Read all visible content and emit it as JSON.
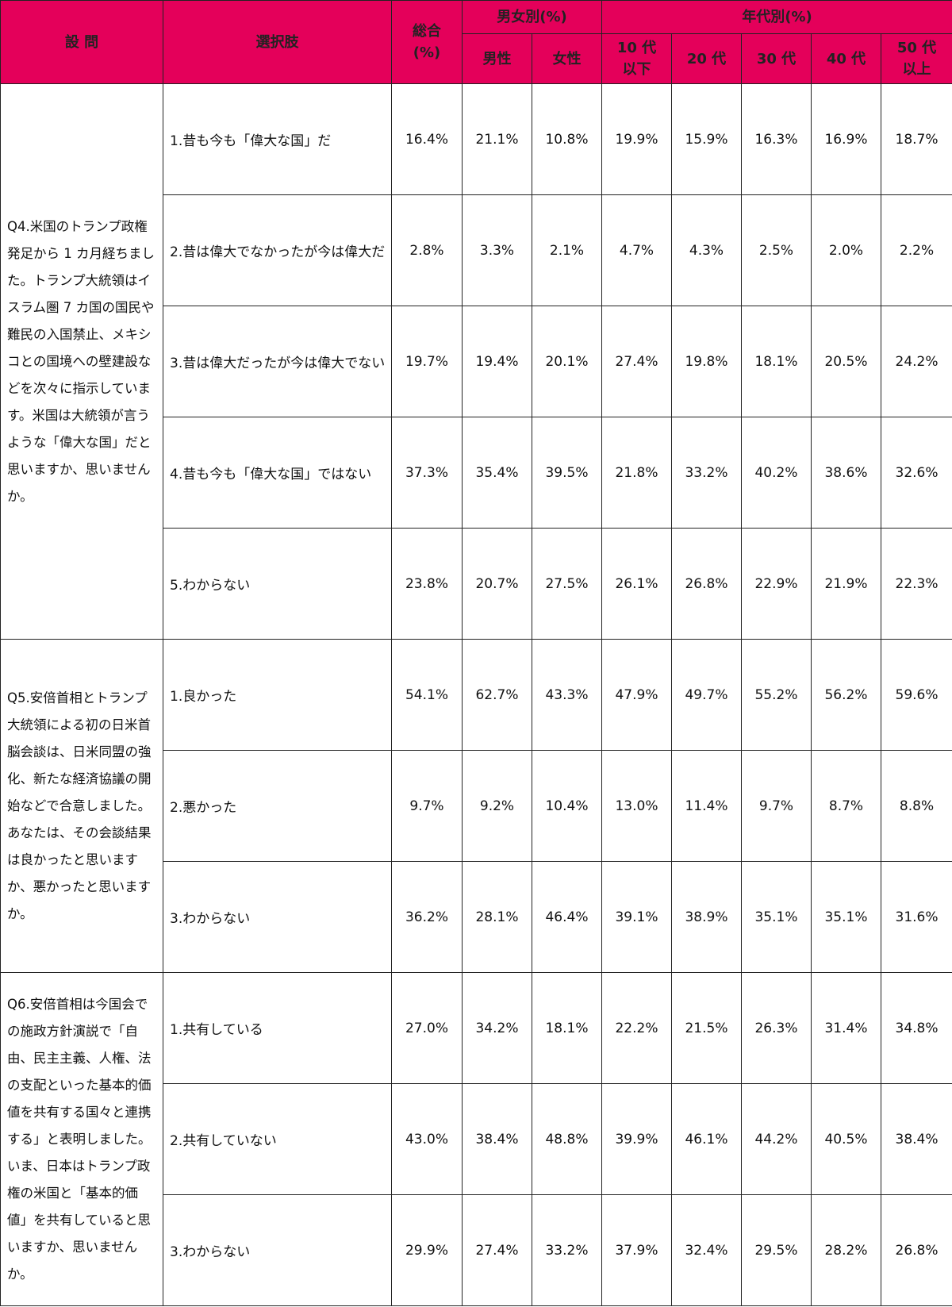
{
  "header": {
    "question": "設 問",
    "choice": "選択肢",
    "total": "総合\n(%)",
    "gender": "男女別(%)",
    "age": "年代別(%)",
    "gender_cols": [
      "男性",
      "女性"
    ],
    "age_cols": [
      "10 代\n以下",
      "20 代",
      "30 代",
      "40 代",
      "50 代\n以上"
    ]
  },
  "colors": {
    "header_bg": "#e4005a"
  },
  "questions": [
    {
      "text": "Q4.米国のトランプ政権発足から 1 カ月経ちました。トランプ大統領はイスラム圏 7 カ国の国民や難民の入国禁止、メキシコとの国境への壁建設などを次々に指示しています。米国は大統領が言うような「偉大な国」だと思いますか、思いませんか。",
      "rows": [
        {
          "choice": "1.昔も今も「偉大な国」だ",
          "values": [
            "16.4%",
            "21.1%",
            "10.8%",
            "19.9%",
            "15.9%",
            "16.3%",
            "16.9%",
            "18.7%"
          ]
        },
        {
          "choice": "2.昔は偉大でなかったが今は偉大だ",
          "values": [
            "2.8%",
            "3.3%",
            "2.1%",
            "4.7%",
            "4.3%",
            "2.5%",
            "2.0%",
            "2.2%"
          ]
        },
        {
          "choice": "3.昔は偉大だったが今は偉大でない",
          "values": [
            "19.7%",
            "19.4%",
            "20.1%",
            "27.4%",
            "19.8%",
            "18.1%",
            "20.5%",
            "24.2%"
          ]
        },
        {
          "choice": "4.昔も今も「偉大な国」ではない",
          "values": [
            "37.3%",
            "35.4%",
            "39.5%",
            "21.8%",
            "33.2%",
            "40.2%",
            "38.6%",
            "32.6%"
          ]
        },
        {
          "choice": "5.わからない",
          "values": [
            "23.8%",
            "20.7%",
            "27.5%",
            "26.1%",
            "26.8%",
            "22.9%",
            "21.9%",
            "22.3%"
          ]
        }
      ]
    },
    {
      "text": "Q5.安倍首相とトランプ大統領による初の日米首脳会談は、日米同盟の強化、新たな経済協議の開始などで合意しました。あなたは、その会談結果は良かったと思いますか、悪かったと思いますか。",
      "rows": [
        {
          "choice": "1.良かった",
          "values": [
            "54.1%",
            "62.7%",
            "43.3%",
            "47.9%",
            "49.7%",
            "55.2%",
            "56.2%",
            "59.6%"
          ]
        },
        {
          "choice": "2.悪かった",
          "values": [
            "9.7%",
            "9.2%",
            "10.4%",
            "13.0%",
            "11.4%",
            "9.7%",
            "8.7%",
            "8.8%"
          ]
        },
        {
          "choice": "3.わからない",
          "values": [
            "36.2%",
            "28.1%",
            "46.4%",
            "39.1%",
            "38.9%",
            "35.1%",
            "35.1%",
            "31.6%"
          ]
        }
      ]
    },
    {
      "text": "Q6.安倍首相は今国会での施政方針演説で「自由、民主主義、人権、法の支配といった基本的価値を共有する国々と連携する」と表明しました。いま、日本はトランプ政権の米国と「基本的価値」を共有していると思いますか、思いませんか。",
      "rows": [
        {
          "choice": "1.共有している",
          "values": [
            "27.0%",
            "34.2%",
            "18.1%",
            "22.2%",
            "21.5%",
            "26.3%",
            "31.4%",
            "34.8%"
          ]
        },
        {
          "choice": "2.共有していない",
          "values": [
            "43.0%",
            "38.4%",
            "48.8%",
            "39.9%",
            "46.1%",
            "44.2%",
            "40.5%",
            "38.4%"
          ]
        },
        {
          "choice": "3.わからない",
          "values": [
            "29.9%",
            "27.4%",
            "33.2%",
            "37.9%",
            "32.4%",
            "29.5%",
            "28.2%",
            "26.8%"
          ]
        }
      ]
    }
  ]
}
